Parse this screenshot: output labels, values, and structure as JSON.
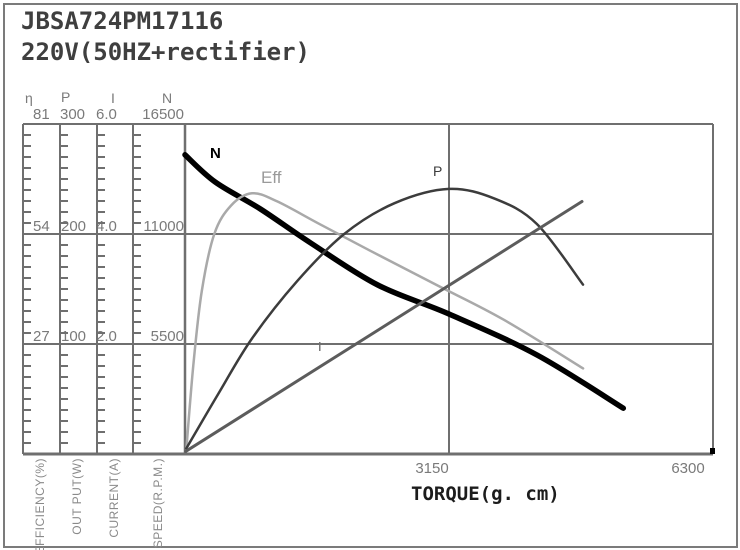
{
  "title": {
    "model": "JBSA724PM17116",
    "voltage": "220V(50HZ+rectifier)"
  },
  "chart_data": {
    "type": "line",
    "x_axis": {
      "label": "TORQUE(g. cm)",
      "min": 0,
      "max": 6300,
      "ticks": [
        "3150",
        "6300"
      ]
    },
    "y_axes": [
      {
        "name": "η",
        "unit": "EFFICIENCY(%)",
        "min": 0,
        "max": 81,
        "ticks": [
          "81",
          "54",
          "27"
        ]
      },
      {
        "name": "P",
        "unit": "OUT PUT(W)",
        "min": 0,
        "max": 300,
        "ticks": [
          "300",
          "200",
          "100"
        ]
      },
      {
        "name": "I",
        "unit": "CURRENT(A)",
        "min": 0,
        "max": 6.0,
        "ticks": [
          "6.0",
          "4.0",
          "2.0"
        ]
      },
      {
        "name": "N",
        "unit": "SPEED(R.P.M.)",
        "min": 0,
        "max": 16500,
        "ticks": [
          "16500",
          "11000",
          "5500"
        ]
      }
    ],
    "grid": true,
    "legend_position": "inline-labels",
    "series": [
      {
        "name": "speed",
        "label": "N",
        "axis": "N",
        "color": "#000000",
        "width": 5.5,
        "points": [
          [
            0,
            14960
          ],
          [
            360,
            13600
          ],
          [
            900,
            12250
          ],
          [
            1500,
            10550
          ],
          [
            2300,
            8450
          ],
          [
            3150,
            7000
          ],
          [
            4200,
            4950
          ],
          [
            5230,
            2290
          ]
        ]
      },
      {
        "name": "efficiency",
        "label": "Eff",
        "axis": "η",
        "color": "#a9a9a9",
        "width": 2.5,
        "points": [
          [
            15,
            1
          ],
          [
            100,
            22
          ],
          [
            200,
            40
          ],
          [
            350,
            54
          ],
          [
            550,
            61
          ],
          [
            800,
            64
          ],
          [
            1100,
            62
          ],
          [
            1600,
            56.5
          ],
          [
            2200,
            50
          ],
          [
            3000,
            41.5
          ],
          [
            3800,
            33
          ],
          [
            4750,
            21
          ]
        ]
      },
      {
        "name": "output-power",
        "label": "P",
        "axis": "P",
        "color": "#3c3c3c",
        "width": 2.5,
        "points": [
          [
            15,
            5
          ],
          [
            400,
            55
          ],
          [
            800,
            105
          ],
          [
            1336,
            157
          ],
          [
            1900,
            200
          ],
          [
            2500,
            228
          ],
          [
            3150,
            241
          ],
          [
            3700,
            232
          ],
          [
            4200,
            209
          ],
          [
            4749,
            154
          ]
        ]
      },
      {
        "name": "current",
        "label": "I",
        "axis": "I",
        "color": "#5c5c5c",
        "width": 3,
        "points": [
          [
            10,
            0.05
          ],
          [
            4737,
            4.59
          ]
        ]
      }
    ],
    "colors": {
      "grid": "#6f6f6f",
      "tick_text": "#7a7a7a",
      "frame": "#7b7b7b"
    }
  }
}
